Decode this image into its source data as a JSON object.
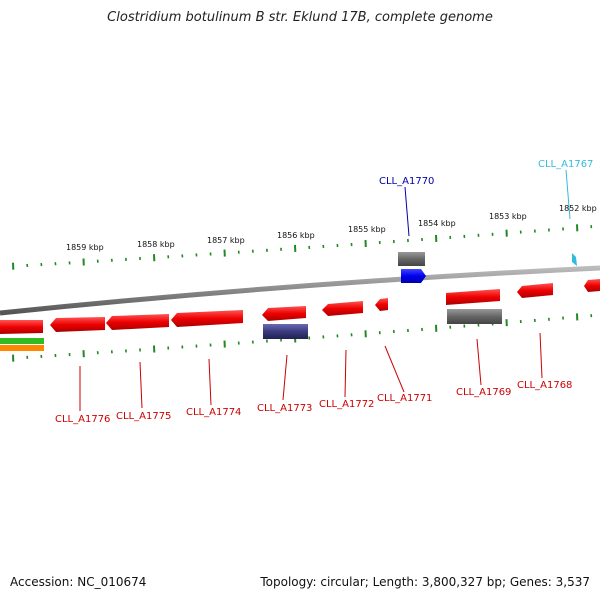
{
  "title": "Clostridium botulinum B str. Eklund 17B, complete genome",
  "footer": {
    "accession": "Accession: NC_010674",
    "summary": "Topology: circular; Length: 3,800,327 bp; Genes: 3,537"
  },
  "colors": {
    "backbone": "#8a8a8a",
    "gene_forward": "#ee1111",
    "gene_reverse": "#ee1111",
    "gene_other_gray": "#666666",
    "gene_blue": "#0000dd",
    "gene_purple": "#3a3a80",
    "gene_cyan": "#33bbdd",
    "tick": "#228822",
    "label_red": "#cc0000",
    "label_blue": "#0000aa",
    "label_cyan": "#33bbdd"
  },
  "scale": {
    "labels": [
      "1859 kbp",
      "1858 kbp",
      "1857 kbp",
      "1856 kbp",
      "1855 kbp",
      "1854 kbp",
      "1853 kbp",
      "1852 kbp"
    ]
  },
  "genes": [
    {
      "label": "CLL_A1776",
      "color": "label_red"
    },
    {
      "label": "CLL_A1775",
      "color": "label_red"
    },
    {
      "label": "CLL_A1774",
      "color": "label_red"
    },
    {
      "label": "CLL_A1773",
      "color": "label_red"
    },
    {
      "label": "CLL_A1772",
      "color": "label_red"
    },
    {
      "label": "CLL_A1771",
      "color": "label_red"
    },
    {
      "label": "CLL_A1769",
      "color": "label_red"
    },
    {
      "label": "CLL_A1768",
      "color": "label_red"
    },
    {
      "label": "CLL_A1770",
      "color": "label_blue"
    },
    {
      "label": "CLL_A1767",
      "color": "label_cyan"
    }
  ]
}
